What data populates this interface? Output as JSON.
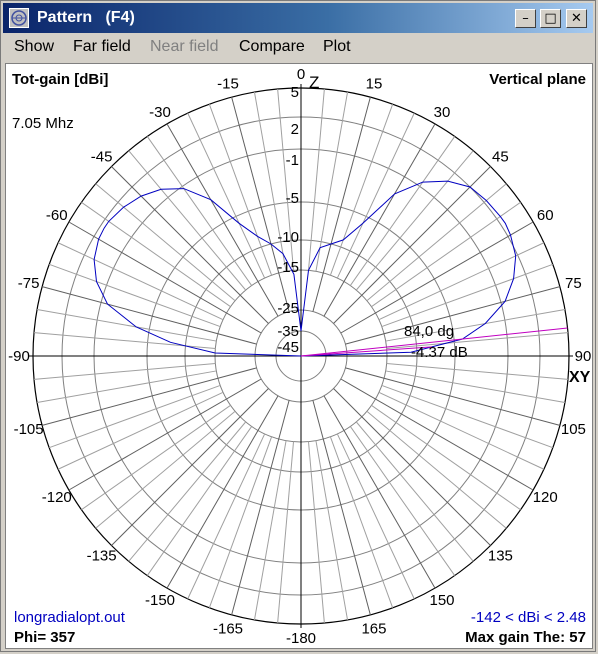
{
  "window": {
    "title": "Pattern   (F4)",
    "minimize": "–",
    "maximize": "□",
    "close": "✕"
  },
  "menu": {
    "show": "Show",
    "far_field": "Far field",
    "near_field": "Near field",
    "compare": "Compare",
    "plot": "Plot"
  },
  "plot_labels": {
    "scale_type": "Tot-gain [dBi]",
    "plane": "Vertical plane",
    "frequency": "7.05 Mhz",
    "zenith": "Z",
    "horizon": "XY",
    "filename": "longradialopt.out",
    "range": "-142 < dBi < 2.48",
    "phi": "Phi= 357",
    "max_gain": "Max gain The: 57",
    "cursor_angle": "84,0 dg",
    "cursor_gain": "-4.37 dB"
  },
  "ring_labels": [
    "5",
    "2",
    "-1",
    "-5",
    "-10",
    "-15",
    "-25",
    "-35",
    "-45"
  ],
  "angle_labels_right": [
    "0",
    "15",
    "30",
    "45",
    "60",
    "75",
    "90",
    "105",
    "120",
    "135",
    "150",
    "165",
    "-180"
  ],
  "angle_labels_left": [
    "-15",
    "-30",
    "-45",
    "-60",
    "-75",
    "-90",
    "-105",
    "-120",
    "-135",
    "-150",
    "-165"
  ],
  "colors": {
    "pattern": "#0000c0",
    "cursor": "#c000c0",
    "grid": "#808080",
    "title_blue": "#0a246a"
  },
  "chart_data": {
    "type": "polar",
    "unit": "dBi",
    "series": [
      {
        "theta_deg": [
          0,
          5,
          10,
          15,
          20,
          25,
          30,
          35,
          40,
          45,
          50,
          55,
          57,
          60,
          65,
          70,
          75,
          80,
          84,
          88,
          90
        ],
        "right_gain_dbi": [
          -35,
          -15,
          -11,
          -10,
          -9,
          -6,
          -2.5,
          -0.5,
          1,
          2,
          2.3,
          2.45,
          2.48,
          2.3,
          1.8,
          0.8,
          -0.6,
          -2.5,
          -4.37,
          -11,
          -45
        ],
        "left_gain_dbi": [
          -35,
          -16,
          -12,
          -10,
          -8.5,
          -6,
          -3,
          -1.2,
          0,
          0.8,
          1.3,
          1.6,
          1.6,
          1.5,
          1.0,
          0,
          -1.5,
          -4,
          -8,
          -15,
          -45
        ]
      }
    ],
    "cursor_theta_deg": 84,
    "cursor_gain_dbi": -4.37
  }
}
